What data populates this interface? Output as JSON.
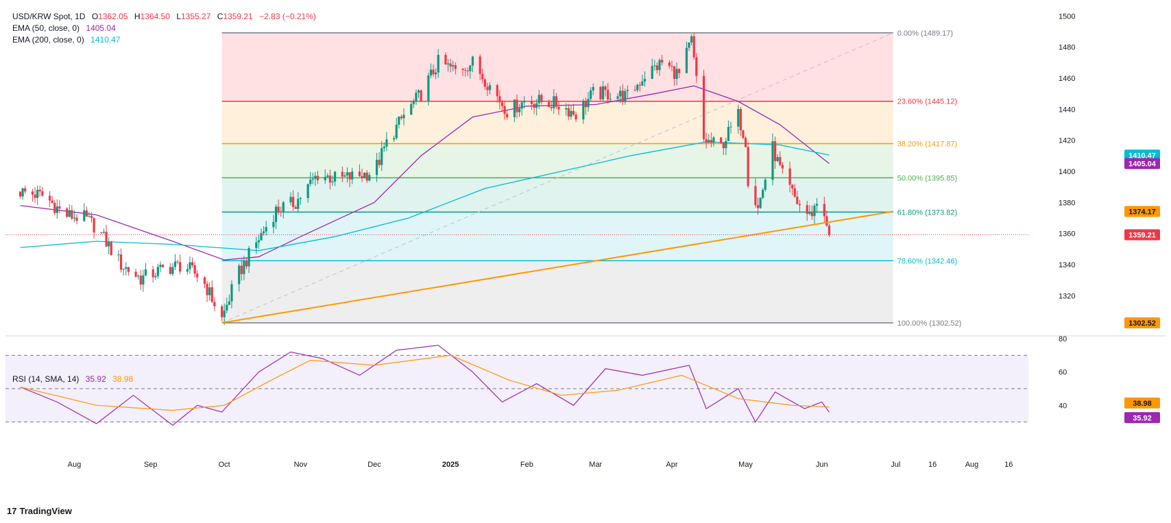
{
  "header": {
    "symbol": "USD/KRW Spot, 1D",
    "open_label": "O",
    "open": "1362.05",
    "high_label": "H",
    "high": "1364.50",
    "low_label": "L",
    "low": "1355.27",
    "close_label": "C",
    "close": "1359.21",
    "change": "−2.83 (−0.21%)",
    "ema50_label": "EMA (50, close, 0)",
    "ema50_value": "1405.04",
    "ema200_label": "EMA (200, close, 0)",
    "ema200_value": "1410.47"
  },
  "rsi_header": {
    "label": "RSI (14, SMA, 14)",
    "rsi_value": "35.92",
    "sma_value": "38.98"
  },
  "footer": {
    "brand": "TradingView",
    "logo_glyph": "17"
  },
  "colors": {
    "up": "#089981",
    "down": "#f23645",
    "ema50": "#9c27b0",
    "ema200": "#00bcd4",
    "trendline": "#ff9800",
    "rsi": "#9c27b0",
    "rsi_sma": "#ff9800"
  },
  "chart_data": [
    {
      "type": "candlestick",
      "title": "USD/KRW Spot, 1D",
      "ylim": [
        1295,
        1505
      ],
      "y_ticks": [
        1320,
        1340,
        1360,
        1380,
        1400,
        1420,
        1440,
        1460,
        1480,
        1500
      ],
      "x_tick_labels": [
        "Aug",
        "Sep",
        "Oct",
        "Nov",
        "Dec",
        "2025",
        "Feb",
        "Mar",
        "Apr",
        "May",
        "Jun",
        "Jul",
        "16",
        "Aug",
        "16"
      ],
      "x_tick_dates": [
        "2024-08-01",
        "2024-09-01",
        "2024-10-01",
        "2024-11-01",
        "2024-12-01",
        "2025-01-01",
        "2025-02-01",
        "2025-03-01",
        "2025-04-01",
        "2025-05-01",
        "2025-06-01",
        "2025-07-01",
        "2025-07-16",
        "2025-08-01",
        "2025-08-16"
      ],
      "close_path": [
        {
          "date": "2024-07-10",
          "close": 1387
        },
        {
          "date": "2024-07-20",
          "close": 1384
        },
        {
          "date": "2024-07-28",
          "close": 1372
        },
        {
          "date": "2024-08-05",
          "close": 1370
        },
        {
          "date": "2024-08-10",
          "close": 1364
        },
        {
          "date": "2024-08-20",
          "close": 1340
        },
        {
          "date": "2024-08-28",
          "close": 1331
        },
        {
          "date": "2024-09-06",
          "close": 1337
        },
        {
          "date": "2024-09-14",
          "close": 1340
        },
        {
          "date": "2024-09-22",
          "close": 1331
        },
        {
          "date": "2024-09-30",
          "close": 1305
        },
        {
          "date": "2024-10-06",
          "close": 1332
        },
        {
          "date": "2024-10-14",
          "close": 1354
        },
        {
          "date": "2024-10-22",
          "close": 1375
        },
        {
          "date": "2024-10-30",
          "close": 1380
        },
        {
          "date": "2024-11-08",
          "close": 1398
        },
        {
          "date": "2024-11-16",
          "close": 1395
        },
        {
          "date": "2024-11-24",
          "close": 1397
        },
        {
          "date": "2024-12-01",
          "close": 1400
        },
        {
          "date": "2024-12-06",
          "close": 1418
        },
        {
          "date": "2024-12-13",
          "close": 1436
        },
        {
          "date": "2024-12-20",
          "close": 1450
        },
        {
          "date": "2024-12-27",
          "close": 1470
        },
        {
          "date": "2025-01-03",
          "close": 1465
        },
        {
          "date": "2025-01-10",
          "close": 1470
        },
        {
          "date": "2025-01-17",
          "close": 1455
        },
        {
          "date": "2025-01-24",
          "close": 1439
        },
        {
          "date": "2025-01-31",
          "close": 1445
        },
        {
          "date": "2025-02-07",
          "close": 1445
        },
        {
          "date": "2025-02-14",
          "close": 1443
        },
        {
          "date": "2025-02-21",
          "close": 1437
        },
        {
          "date": "2025-02-28",
          "close": 1450
        },
        {
          "date": "2025-03-07",
          "close": 1450
        },
        {
          "date": "2025-03-14",
          "close": 1448
        },
        {
          "date": "2025-03-21",
          "close": 1462
        },
        {
          "date": "2025-03-28",
          "close": 1470
        },
        {
          "date": "2025-04-04",
          "close": 1462
        },
        {
          "date": "2025-04-09",
          "close": 1484
        },
        {
          "date": "2025-04-14",
          "close": 1420
        },
        {
          "date": "2025-04-21",
          "close": 1416
        },
        {
          "date": "2025-04-28",
          "close": 1436
        },
        {
          "date": "2025-05-01",
          "close": 1420
        },
        {
          "date": "2025-05-02",
          "close": 1395
        },
        {
          "date": "2025-05-06",
          "close": 1376
        },
        {
          "date": "2025-05-12",
          "close": 1415
        },
        {
          "date": "2025-05-16",
          "close": 1397
        },
        {
          "date": "2025-05-22",
          "close": 1380
        },
        {
          "date": "2025-05-27",
          "close": 1371
        },
        {
          "date": "2025-05-30",
          "close": 1380
        },
        {
          "date": "2025-06-02",
          "close": 1374
        },
        {
          "date": "2025-06-03",
          "close": 1362
        },
        {
          "date": "2025-06-04",
          "close": 1359.21
        }
      ],
      "series": [
        {
          "name": "EMA (50, close, 0)",
          "last": 1405.04,
          "points": [
            {
              "date": "2024-07-10",
              "value": 1378
            },
            {
              "date": "2024-08-10",
              "value": 1372
            },
            {
              "date": "2024-09-10",
              "value": 1355
            },
            {
              "date": "2024-10-01",
              "value": 1343
            },
            {
              "date": "2024-10-15",
              "value": 1345
            },
            {
              "date": "2024-11-01",
              "value": 1358
            },
            {
              "date": "2024-12-01",
              "value": 1380
            },
            {
              "date": "2024-12-20",
              "value": 1410
            },
            {
              "date": "2025-01-10",
              "value": 1435
            },
            {
              "date": "2025-02-01",
              "value": 1442
            },
            {
              "date": "2025-03-01",
              "value": 1443
            },
            {
              "date": "2025-03-25",
              "value": 1450
            },
            {
              "date": "2025-04-10",
              "value": 1455
            },
            {
              "date": "2025-04-28",
              "value": 1445
            },
            {
              "date": "2025-05-15",
              "value": 1430
            },
            {
              "date": "2025-06-04",
              "value": 1405.04
            }
          ]
        },
        {
          "name": "EMA (200, close, 0)",
          "last": 1410.47,
          "points": [
            {
              "date": "2024-07-10",
              "value": 1351
            },
            {
              "date": "2024-08-10",
              "value": 1355
            },
            {
              "date": "2024-09-10",
              "value": 1353
            },
            {
              "date": "2024-10-15",
              "value": 1349
            },
            {
              "date": "2024-11-15",
              "value": 1358
            },
            {
              "date": "2024-12-15",
              "value": 1370
            },
            {
              "date": "2025-01-15",
              "value": 1389
            },
            {
              "date": "2025-02-15",
              "value": 1400
            },
            {
              "date": "2025-03-15",
              "value": 1410
            },
            {
              "date": "2025-04-15",
              "value": 1419
            },
            {
              "date": "2025-05-15",
              "value": 1417
            },
            {
              "date": "2025-06-04",
              "value": 1410.47
            }
          ]
        }
      ],
      "fibonacci": {
        "start_date": "2024-09-30",
        "end_date": "2025-06-30",
        "levels": [
          {
            "label": "0.00% (1489.17)",
            "ratio": 0.0,
            "price": 1489.17,
            "color": "#787b86"
          },
          {
            "label": "23.60% (1445.12)",
            "ratio": 0.236,
            "price": 1445.12,
            "color": "#f23645"
          },
          {
            "label": "38.20% (1417.87)",
            "ratio": 0.382,
            "price": 1417.87,
            "color": "#ff9800"
          },
          {
            "label": "50.00% (1395.85)",
            "ratio": 0.5,
            "price": 1395.85,
            "color": "#4caf50"
          },
          {
            "label": "61.80% (1373.82)",
            "ratio": 0.618,
            "price": 1373.82,
            "color": "#089981"
          },
          {
            "label": "78.60% (1342.46)",
            "ratio": 0.786,
            "price": 1342.46,
            "color": "#00bcd4"
          },
          {
            "label": "100.00% (1302.52)",
            "ratio": 1.0,
            "price": 1302.52,
            "color": "#787b86"
          }
        ],
        "fills": [
          "#ffe0e3",
          "#fff0dc",
          "#e6f5e6",
          "#e0f3ef",
          "#dff5f8",
          "#eeeeee"
        ]
      },
      "trendline": {
        "from": {
          "date": "2024-09-30",
          "price": 1302.52
        },
        "to": {
          "date": "2025-06-30",
          "price": 1374.17
        }
      },
      "last_price_line": 1359.21,
      "price_badges": [
        {
          "text": "1410.47",
          "color": "#00bcd4"
        },
        {
          "text": "1405.04",
          "color": "#9c27b0"
        },
        {
          "text": "1374.17",
          "color": "#ff9800"
        },
        {
          "text": "1359.21",
          "color": "#f23645"
        },
        {
          "text": "1302.52",
          "color": "#ff9800"
        }
      ],
      "legend_placement": "top-left",
      "grid": false
    },
    {
      "type": "line",
      "title": "RSI (14, SMA, 14)",
      "ylim": [
        20,
        80
      ],
      "y_ticks": [
        40,
        60,
        80
      ],
      "bands": [
        70,
        50,
        30
      ],
      "series": [
        {
          "name": "RSI",
          "last": 35.92,
          "points": [
            {
              "date": "2024-07-10",
              "value": 51
            },
            {
              "date": "2024-07-25",
              "value": 42
            },
            {
              "date": "2024-08-10",
              "value": 29
            },
            {
              "date": "2024-08-25",
              "value": 46
            },
            {
              "date": "2024-09-10",
              "value": 28
            },
            {
              "date": "2024-09-20",
              "value": 40
            },
            {
              "date": "2024-09-30",
              "value": 36
            },
            {
              "date": "2024-10-15",
              "value": 60
            },
            {
              "date": "2024-10-28",
              "value": 72
            },
            {
              "date": "2024-11-10",
              "value": 68
            },
            {
              "date": "2024-11-25",
              "value": 58
            },
            {
              "date": "2024-12-10",
              "value": 73
            },
            {
              "date": "2024-12-27",
              "value": 76
            },
            {
              "date": "2025-01-10",
              "value": 60
            },
            {
              "date": "2025-01-22",
              "value": 42
            },
            {
              "date": "2025-02-05",
              "value": 53
            },
            {
              "date": "2025-02-20",
              "value": 40
            },
            {
              "date": "2025-03-05",
              "value": 62
            },
            {
              "date": "2025-03-20",
              "value": 58
            },
            {
              "date": "2025-04-08",
              "value": 64
            },
            {
              "date": "2025-04-15",
              "value": 38
            },
            {
              "date": "2025-04-28",
              "value": 50
            },
            {
              "date": "2025-05-05",
              "value": 30
            },
            {
              "date": "2025-05-13",
              "value": 48
            },
            {
              "date": "2025-05-25",
              "value": 38
            },
            {
              "date": "2025-06-01",
              "value": 42
            },
            {
              "date": "2025-06-04",
              "value": 35.92
            }
          ]
        },
        {
          "name": "SMA",
          "last": 38.98,
          "points": [
            {
              "date": "2024-07-10",
              "value": 51
            },
            {
              "date": "2024-08-10",
              "value": 40
            },
            {
              "date": "2024-09-10",
              "value": 37
            },
            {
              "date": "2024-10-01",
              "value": 40
            },
            {
              "date": "2024-10-20",
              "value": 55
            },
            {
              "date": "2024-11-05",
              "value": 67
            },
            {
              "date": "2024-12-01",
              "value": 64
            },
            {
              "date": "2025-01-01",
              "value": 70
            },
            {
              "date": "2025-01-25",
              "value": 55
            },
            {
              "date": "2025-02-15",
              "value": 46
            },
            {
              "date": "2025-03-10",
              "value": 49
            },
            {
              "date": "2025-04-05",
              "value": 58
            },
            {
              "date": "2025-04-28",
              "value": 44
            },
            {
              "date": "2025-05-20",
              "value": 40
            },
            {
              "date": "2025-06-04",
              "value": 38.98
            }
          ]
        }
      ]
    }
  ]
}
